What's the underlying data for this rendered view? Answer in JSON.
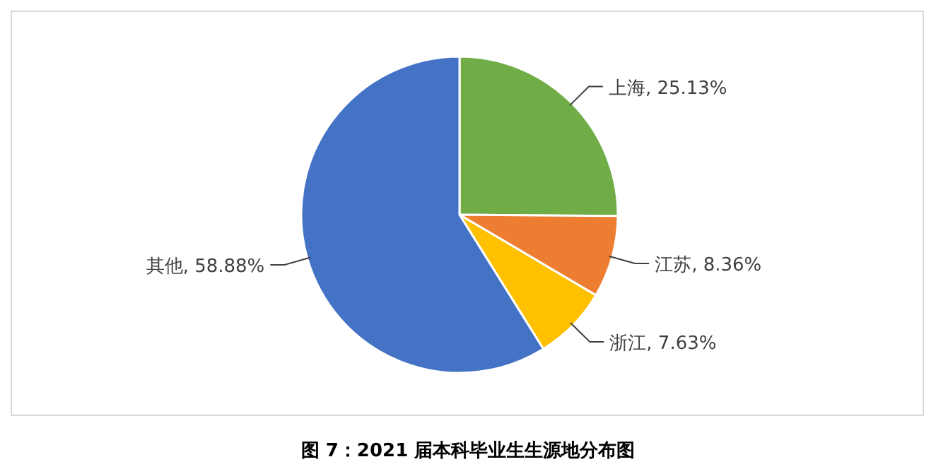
{
  "chart_data": {
    "type": "pie",
    "title": "图 7：2021 届本科毕业生生源地分布图",
    "categories": [
      "上海",
      "江苏",
      "浙江",
      "其他"
    ],
    "values": [
      25.13,
      8.36,
      7.63,
      58.88
    ],
    "colors": [
      "#70ad47",
      "#ed7d31",
      "#ffc000",
      "#4472c4"
    ],
    "value_labels": [
      ", 25.13%",
      ", 8.36%",
      ", 7.63%",
      ", 58.88%"
    ],
    "legend": false
  }
}
